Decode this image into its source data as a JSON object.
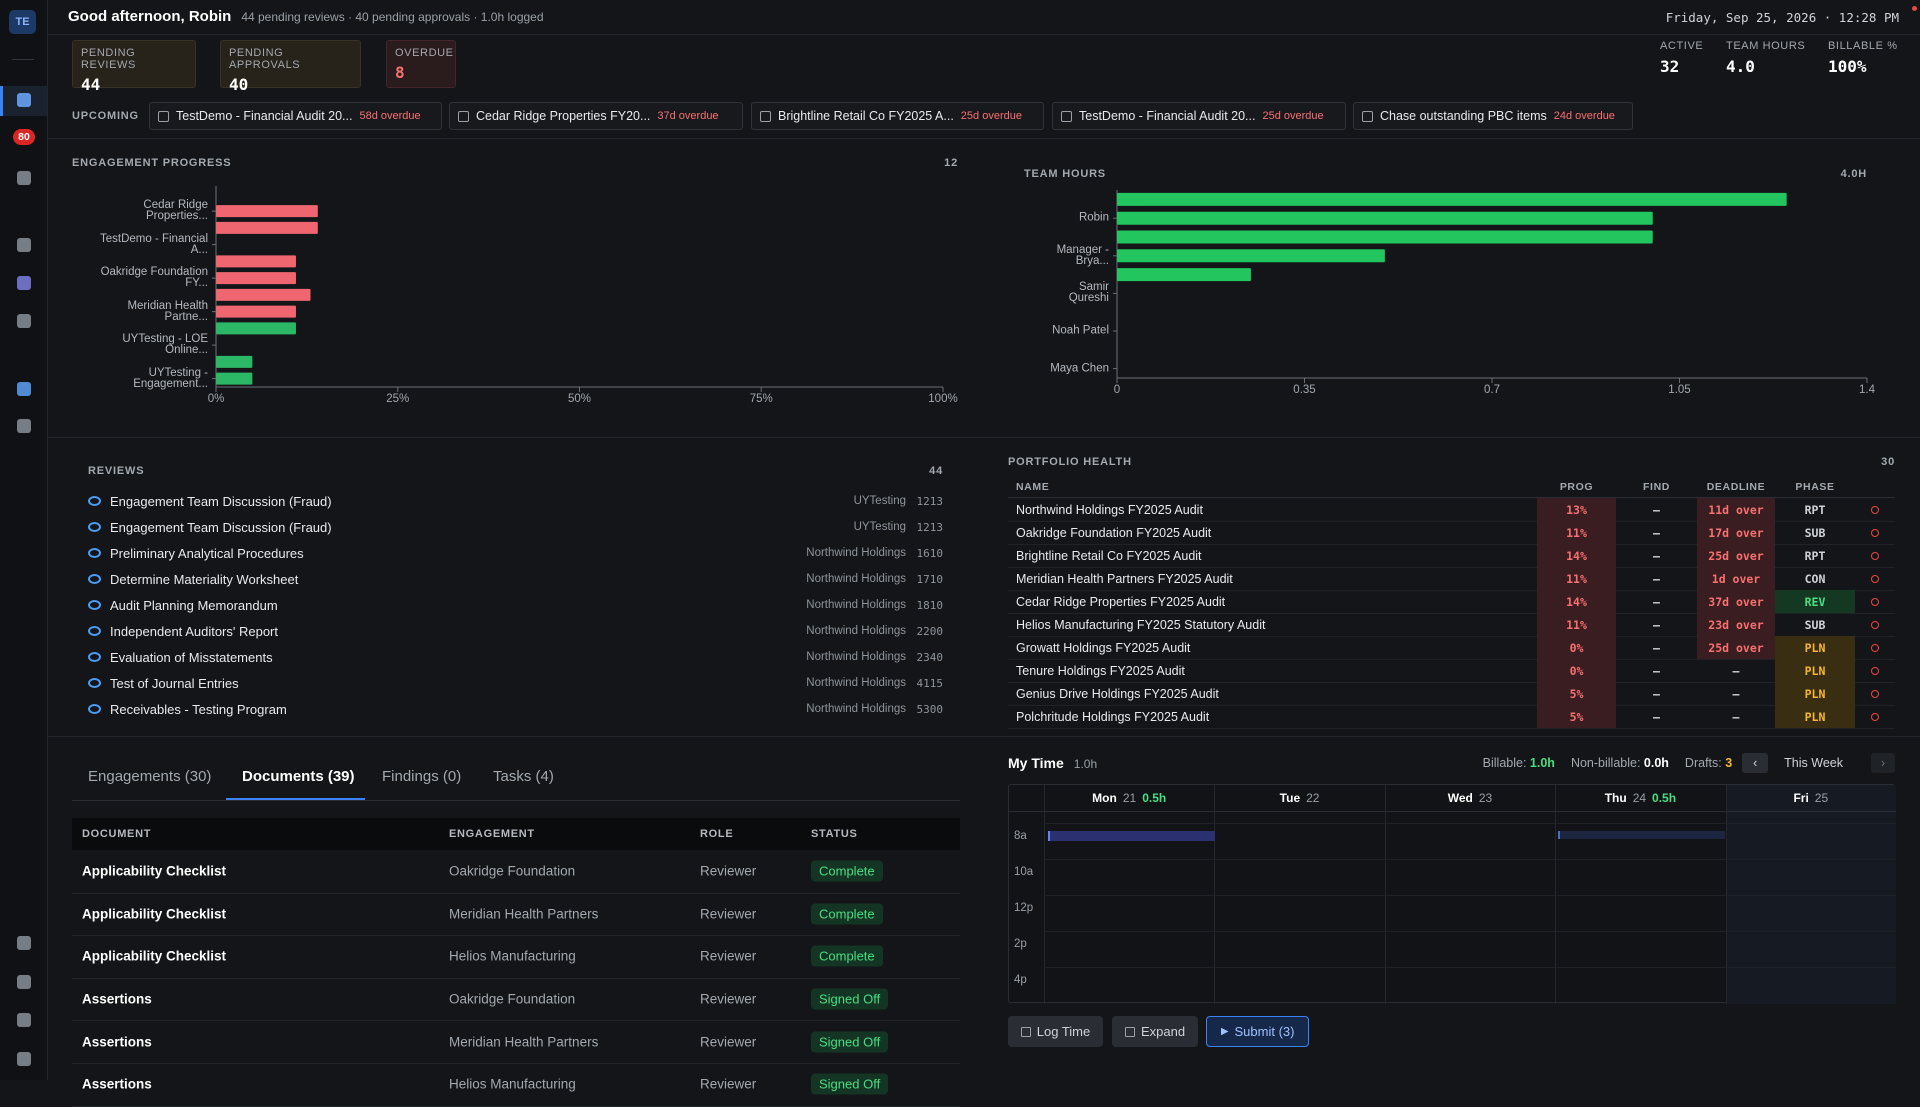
{
  "header": {
    "greeting": "Good afternoon, Robin",
    "summary": "44 pending reviews · 40 pending approvals · 1.0h logged",
    "datetime": "Friday, Sep 25, 2026 · 12:28 PM"
  },
  "sidebar": {
    "avatar": "TE",
    "badge": "80"
  },
  "stats": [
    {
      "label": "PENDING REVIEWS",
      "value": "44"
    },
    {
      "label": "PENDING APPROVALS",
      "value": "40"
    },
    {
      "label": "OVERDUE",
      "value": "8"
    }
  ],
  "summary_stats": [
    {
      "label": "ACTIVE",
      "value": "32"
    },
    {
      "label": "TEAM HOURS",
      "value": "4.0"
    },
    {
      "label": "BILLABLE %",
      "value": "100%"
    }
  ],
  "upcoming": {
    "label": "UPCOMING",
    "items": [
      {
        "title": "TestDemo - Financial Audit 20...",
        "due": "58d overdue"
      },
      {
        "title": "Cedar Ridge Properties FY20...",
        "due": "37d overdue"
      },
      {
        "title": "Brightline Retail Co FY2025 A...",
        "due": "25d overdue"
      },
      {
        "title": "TestDemo - Financial Audit 20...",
        "due": "25d overdue"
      },
      {
        "title": "Chase outstanding PBC items",
        "due": "24d overdue"
      }
    ]
  },
  "engagement_progress": {
    "type": "bar",
    "title": "ENGAGEMENT PROGRESS",
    "count": "12",
    "categories": [
      null,
      "Cedar Ridge Properties...",
      null,
      "TestDemo - Financial A...",
      null,
      "Oakridge Foundation FY...",
      null,
      "Meridian Health Partne...",
      null,
      "UYTesting - LOE Online...",
      null,
      "UYTesting - Engagement..."
    ],
    "values": [
      0,
      14,
      14,
      0,
      11,
      11,
      13,
      11,
      11,
      0,
      5,
      5
    ],
    "colors": [
      "#ef6670",
      "#ef6670",
      "#ef6670",
      "#ef6670",
      "#ef6670",
      "#ef6670",
      "#ef6670",
      "#ef6670",
      "#2bb766",
      "#2bb766",
      "#2bb766",
      "#2bb766"
    ],
    "xlim": [
      0,
      100
    ],
    "xticks": [
      {
        "value": 0,
        "label": "0%"
      },
      {
        "value": 25,
        "label": "25%"
      },
      {
        "value": 50,
        "label": "50%"
      },
      {
        "value": 75,
        "label": "75%"
      },
      {
        "value": 100,
        "label": "100%"
      }
    ]
  },
  "team_hours": {
    "type": "bar",
    "title": "TEAM HOURS",
    "total": "4.0H",
    "categories": [
      null,
      "Robin",
      null,
      "Manager - Brya...",
      null,
      "Samir Qureshi",
      null,
      "Noah Patel",
      null,
      "Maya Chen"
    ],
    "values": [
      1.25,
      1,
      1,
      0.5,
      0.25,
      0,
      0,
      0,
      0,
      0
    ],
    "color": "#22c55e",
    "xlim": [
      0,
      1.4
    ],
    "xticks": [
      0,
      0.35,
      0.7,
      1.05,
      1.4
    ]
  },
  "reviews": {
    "title": "REVIEWS",
    "count": "44",
    "items": [
      {
        "name": "Engagement Team Discussion (Fraud)",
        "client": "UYTesting",
        "id": "1213"
      },
      {
        "name": "Engagement Team Discussion (Fraud)",
        "client": "UYTesting",
        "id": "1213"
      },
      {
        "name": "Preliminary Analytical Procedures",
        "client": "Northwind Holdings",
        "id": "1610"
      },
      {
        "name": "Determine Materiality Worksheet",
        "client": "Northwind Holdings",
        "id": "1710"
      },
      {
        "name": "Audit Planning Memorandum",
        "client": "Northwind Holdings",
        "id": "1810"
      },
      {
        "name": "Independent Auditors' Report",
        "client": "Northwind Holdings",
        "id": "2200"
      },
      {
        "name": "Evaluation of Misstatements",
        "client": "Northwind Holdings",
        "id": "2340"
      },
      {
        "name": "Test of Journal Entries",
        "client": "Northwind Holdings",
        "id": "4115"
      },
      {
        "name": "Receivables - Testing Program",
        "client": "Northwind Holdings",
        "id": "5300"
      }
    ]
  },
  "portfolio": {
    "title": "PORTFOLIO HEALTH",
    "count": "30",
    "columns": [
      "NAME",
      "PROG",
      "FIND",
      "DEADLINE",
      "PHASE"
    ],
    "rows": [
      [
        "Northwind Holdings FY2025 Audit",
        "13%",
        "–",
        "11d over",
        "RPT"
      ],
      [
        "Oakridge Foundation FY2025 Audit",
        "11%",
        "–",
        "17d over",
        "SUB"
      ],
      [
        "Brightline Retail Co FY2025 Audit",
        "14%",
        "–",
        "25d over",
        "RPT"
      ],
      [
        "Meridian Health Partners FY2025 Audit",
        "11%",
        "–",
        "1d over",
        "CON"
      ],
      [
        "Cedar Ridge Properties FY2025 Audit",
        "14%",
        "–",
        "37d over",
        "REV"
      ],
      [
        "Helios Manufacturing FY2025 Statutory Audit",
        "11%",
        "–",
        "23d over",
        "SUB"
      ],
      [
        "Growatt Holdings FY2025 Audit",
        "0%",
        "–",
        "25d over",
        "PLN"
      ],
      [
        "Tenure Holdings FY2025 Audit",
        "0%",
        "–",
        "–",
        "PLN"
      ],
      [
        "Genius Drive Holdings FY2025 Audit",
        "5%",
        "–",
        "–",
        "PLN"
      ],
      [
        "Polchritude Holdings FY2025 Audit",
        "5%",
        "–",
        "–",
        "PLN"
      ]
    ]
  },
  "tabs": [
    "Engagements (30)",
    "Documents (39)",
    "Findings (0)",
    "Tasks (4)"
  ],
  "documents": {
    "columns": [
      "DOCUMENT",
      "ENGAGEMENT",
      "ROLE",
      "STATUS"
    ],
    "rows": [
      [
        "Applicability Checklist",
        "Oakridge Foundation",
        "Reviewer",
        "Complete"
      ],
      [
        "Applicability Checklist",
        "Meridian Health Partners",
        "Reviewer",
        "Complete"
      ],
      [
        "Applicability Checklist",
        "Helios Manufacturing",
        "Reviewer",
        "Complete"
      ],
      [
        "Assertions",
        "Oakridge Foundation",
        "Reviewer",
        "Signed Off"
      ],
      [
        "Assertions",
        "Meridian Health Partners",
        "Reviewer",
        "Signed Off"
      ],
      [
        "Assertions",
        "Helios Manufacturing",
        "Reviewer",
        "Signed Off"
      ]
    ]
  },
  "my_time": {
    "title": "My Time",
    "hours": "1.0h",
    "billable": {
      "label": "Billable:",
      "value": "1.0h"
    },
    "non_billable": {
      "label": "Non-billable:",
      "value": "0.0h"
    },
    "drafts": {
      "label": "Drafts:",
      "value": "3"
    },
    "prev": "‹",
    "week": "This Week",
    "next": "›",
    "days": [
      {
        "name": "Mon",
        "date": "21",
        "hours": "0.5h"
      },
      {
        "name": "Tue",
        "date": "22"
      },
      {
        "name": "Wed",
        "date": "23"
      },
      {
        "name": "Thu",
        "date": "24",
        "hours": "0.5h"
      },
      {
        "name": "Fri",
        "date": "25"
      }
    ],
    "times": [
      "8a",
      "10a",
      "12p",
      "2p",
      "4p"
    ],
    "buttons": [
      "Log Time",
      "Expand",
      "Submit (3)"
    ]
  }
}
